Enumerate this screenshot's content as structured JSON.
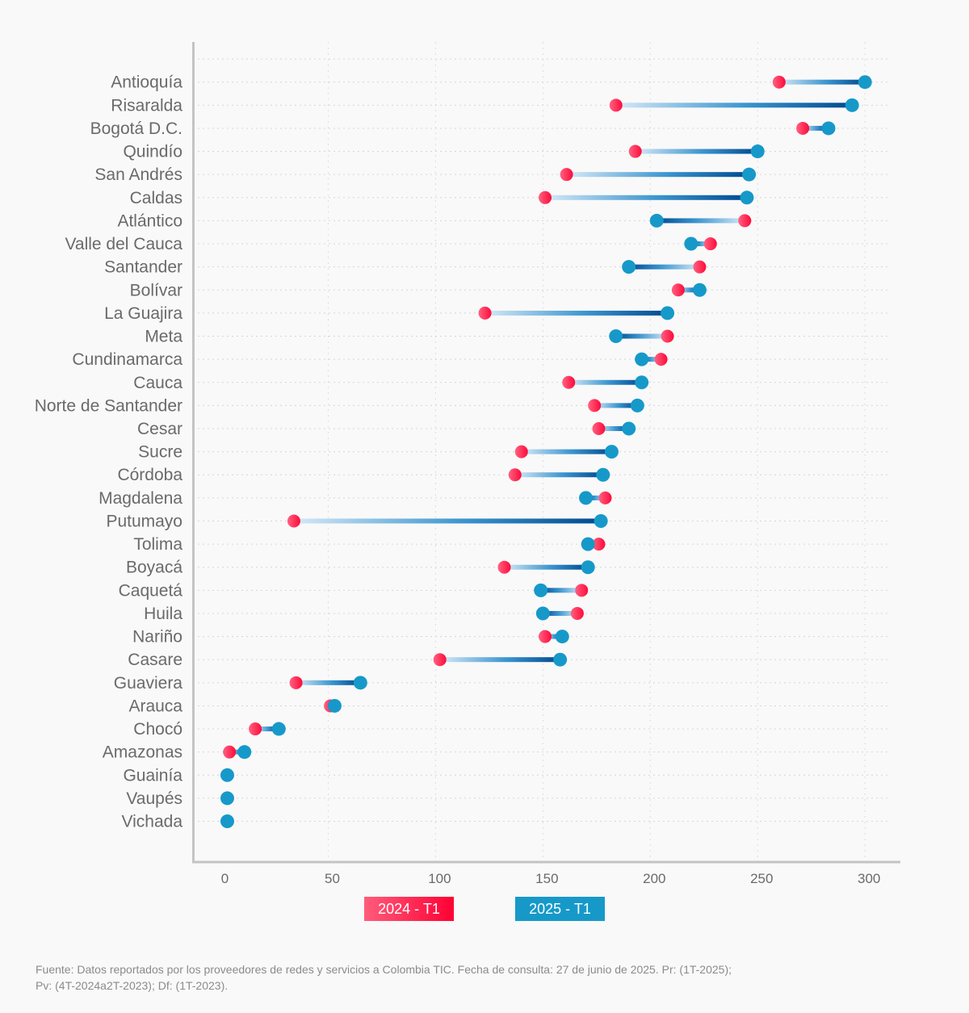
{
  "chart_data": {
    "type": "dumbbell",
    "title": "",
    "xlabel": "",
    "ylabel": "",
    "xlim": [
      0,
      300
    ],
    "x_ticks": [
      0,
      50,
      100,
      150,
      200,
      250,
      300
    ],
    "x_tick_labels": [
      "0",
      "50",
      "100",
      "150",
      "200",
      "250",
      "300"
    ],
    "grid": true,
    "legend_position": "bottom-center",
    "categories": [
      "Antioquía",
      "Risaralda",
      "Bogotá D.C.",
      "Quindío",
      "San Andrés",
      "Caldas",
      "Atlántico",
      "Valle del Cauca",
      "Santander",
      "Bolívar",
      "La Guajira",
      "Meta",
      "Cundinamarca",
      "Cauca",
      "Norte de Santander",
      "Cesar",
      "Sucre",
      "Córdoba",
      "Magdalena",
      "Putumayo",
      "Tolima",
      "Boyacá",
      "Caquetá",
      "Huila",
      "Nariño",
      "Casare",
      "Guaviera",
      "Arauca",
      "Chocó",
      "Amazonas",
      "Guainía",
      "Vaupés",
      "Vichada"
    ],
    "series": [
      {
        "name": "2024 - T1",
        "color": "#ff1a47",
        "values": [
          260,
          184,
          271,
          193,
          161,
          151,
          244,
          228,
          223,
          213,
          123,
          208,
          205,
          162,
          174,
          176,
          140,
          137,
          179,
          34,
          176,
          132,
          168,
          166,
          151,
          102,
          35,
          51,
          16,
          4,
          3,
          3,
          3
        ]
      },
      {
        "name": "2025 - T1",
        "color": "#1699c9",
        "values": [
          300,
          294,
          283,
          250,
          246,
          245,
          203,
          219,
          190,
          223,
          208,
          184,
          196,
          196,
          194,
          190,
          182,
          178,
          170,
          177,
          171,
          171,
          149,
          150,
          159,
          158,
          65,
          53,
          27,
          11,
          3,
          3,
          3
        ]
      }
    ]
  },
  "legend": {
    "items": [
      {
        "label": "2024 - T1",
        "color": "#ff1a47"
      },
      {
        "label": "2025 - T1",
        "color": "#1699c9"
      }
    ]
  },
  "footer": {
    "line1": "Fuente: Datos reportados por los proveedores de redes y servicios a Colombia TIC. Fecha de consulta: 27 de junio de 2025. Pr: (1T-2025);",
    "line2": "Pv: (4T-2024a2T-2023); Df: (1T-2023)."
  }
}
